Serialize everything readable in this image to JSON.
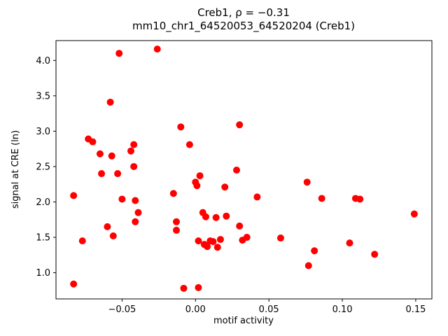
{
  "figure": {
    "title_line1": "Creb1, ρ = −0.31",
    "title_line2": "mm10_chr1_64520053_64520204 (Creb1)",
    "xlabel": "motif activity",
    "ylabel": "signal at CRE (ln)"
  },
  "chart_data": {
    "type": "scatter",
    "title": "Creb1, ρ = −0.31 — mm10_chr1_64520053_64520204 (Creb1)",
    "xlabel": "motif activity",
    "ylabel": "signal at CRE (ln)",
    "marker_color": "#ff0000",
    "grid": false,
    "legend": null,
    "xlim": [
      -0.095,
      0.161
    ],
    "ylim": [
      0.63,
      4.28
    ],
    "x_ticks": [
      -0.05,
      0.0,
      0.05,
      0.1,
      0.15
    ],
    "y_ticks": [
      1.0,
      1.5,
      2.0,
      2.5,
      3.0,
      3.5,
      4.0
    ],
    "points": [
      [
        -0.083,
        2.09
      ],
      [
        -0.083,
        0.84
      ],
      [
        -0.077,
        1.45
      ],
      [
        -0.073,
        2.89
      ],
      [
        -0.07,
        2.85
      ],
      [
        -0.065,
        2.68
      ],
      [
        -0.064,
        2.4
      ],
      [
        -0.06,
        1.65
      ],
      [
        -0.058,
        3.41
      ],
      [
        -0.057,
        2.65
      ],
      [
        -0.056,
        1.52
      ],
      [
        -0.053,
        2.4
      ],
      [
        -0.052,
        4.1
      ],
      [
        -0.05,
        2.04
      ],
      [
        -0.044,
        2.72
      ],
      [
        -0.042,
        2.81
      ],
      [
        -0.042,
        2.5
      ],
      [
        -0.041,
        2.02
      ],
      [
        -0.041,
        1.72
      ],
      [
        -0.039,
        1.85
      ],
      [
        -0.026,
        4.16
      ],
      [
        -0.015,
        2.12
      ],
      [
        -0.013,
        1.72
      ],
      [
        -0.013,
        1.6
      ],
      [
        -0.01,
        3.06
      ],
      [
        -0.008,
        0.78
      ],
      [
        -0.004,
        2.81
      ],
      [
        0.0,
        2.28
      ],
      [
        0.001,
        2.23
      ],
      [
        0.002,
        1.45
      ],
      [
        0.002,
        0.79
      ],
      [
        0.003,
        2.37
      ],
      [
        0.005,
        1.85
      ],
      [
        0.006,
        1.4
      ],
      [
        0.007,
        1.79
      ],
      [
        0.008,
        1.37
      ],
      [
        0.01,
        1.45
      ],
      [
        0.012,
        1.44
      ],
      [
        0.014,
        1.78
      ],
      [
        0.015,
        1.36
      ],
      [
        0.017,
        1.47
      ],
      [
        0.02,
        2.21
      ],
      [
        0.021,
        1.8
      ],
      [
        0.028,
        2.45
      ],
      [
        0.03,
        3.09
      ],
      [
        0.03,
        1.66
      ],
      [
        0.032,
        1.46
      ],
      [
        0.035,
        1.5
      ],
      [
        0.042,
        2.07
      ],
      [
        0.058,
        1.49
      ],
      [
        0.076,
        2.28
      ],
      [
        0.077,
        1.1
      ],
      [
        0.081,
        1.31
      ],
      [
        0.086,
        2.05
      ],
      [
        0.105,
        1.42
      ],
      [
        0.109,
        2.05
      ],
      [
        0.112,
        2.04
      ],
      [
        0.122,
        1.26
      ],
      [
        0.149,
        1.83
      ]
    ]
  }
}
